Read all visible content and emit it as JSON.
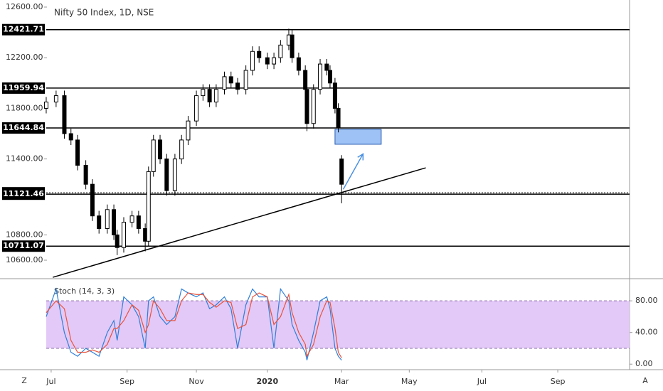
{
  "chart_data": [
    {
      "type": "candlestick",
      "title": "Nifty 50 Index, 1D, NSE",
      "x": [
        -3,
        3,
        8,
        12,
        16,
        21,
        25,
        29,
        34,
        38,
        40,
        44,
        49,
        53,
        57,
        59,
        62,
        66,
        70,
        75,
        79,
        83,
        88,
        92,
        96,
        100,
        105,
        109,
        113,
        118,
        122,
        126,
        131,
        135,
        139,
        144,
        146,
        150,
        154,
        155,
        159,
        163,
        167,
        169,
        172,
        174,
        176
      ],
      "open": [
        11800,
        11850,
        11900,
        11600,
        11550,
        11350,
        11200,
        10950,
        10850,
        11000,
        10800,
        10700,
        10900,
        10950,
        10850,
        10750,
        11300,
        11550,
        11400,
        11150,
        11400,
        11550,
        11700,
        11900,
        11950,
        11850,
        11950,
        12050,
        12000,
        11950,
        12100,
        12250,
        12200,
        12150,
        12200,
        12300,
        12380,
        12200,
        12100,
        11950,
        11680,
        11950,
        12150,
        12100,
        12000,
        11800,
        11400
      ],
      "high": [
        11890,
        11940,
        11940,
        11640,
        11590,
        11390,
        11240,
        10990,
        11040,
        11040,
        10840,
        10940,
        10990,
        10990,
        10890,
        11340,
        11590,
        11590,
        11440,
        11440,
        11590,
        11740,
        11940,
        11990,
        11990,
        11990,
        12090,
        12090,
        12040,
        12140,
        12290,
        12290,
        12240,
        12240,
        12340,
        12430,
        12420,
        12240,
        12140,
        11990,
        11990,
        12190,
        12190,
        12140,
        12040,
        11840,
        11430
      ],
      "low": [
        11760,
        11810,
        11560,
        11510,
        11310,
        11160,
        10910,
        10810,
        10810,
        10760,
        10640,
        10660,
        10860,
        10810,
        10670,
        10710,
        11260,
        11360,
        11110,
        11110,
        11360,
        11510,
        11660,
        11860,
        11810,
        11810,
        11910,
        11960,
        11910,
        11910,
        12060,
        12160,
        12110,
        12110,
        12160,
        12260,
        12160,
        12060,
        11910,
        11620,
        11640,
        11910,
        12060,
        11960,
        11760,
        11610,
        11050
      ],
      "close": [
        11850,
        11900,
        11600,
        11550,
        11350,
        11200,
        10950,
        10850,
        11000,
        10800,
        10700,
        10900,
        10950,
        10850,
        10750,
        11300,
        11550,
        11400,
        11150,
        11400,
        11550,
        11700,
        11900,
        11950,
        11850,
        11950,
        12050,
        12000,
        11950,
        12100,
        12250,
        12200,
        12150,
        12200,
        12300,
        12380,
        12200,
        12100,
        11950,
        11680,
        11950,
        12150,
        12100,
        12000,
        11800,
        11650,
        11200
      ],
      "up_color": "#ffffff",
      "down_color": "#000000",
      "xlim": [
        -31,
        350.5
      ],
      "ylim": [
        10454,
        12656
      ],
      "yticks": [
        {
          "value": 12600,
          "label": "12600.00"
        },
        {
          "value": 12200,
          "label": "12200.00"
        },
        {
          "value": 11800,
          "label": "11800.00"
        },
        {
          "value": 11400,
          "label": "11400.00"
        },
        {
          "value": 10800,
          "label": "10800.00"
        },
        {
          "value": 10600,
          "label": "10600.00"
        }
      ],
      "levels": [
        12421.71,
        11959.94,
        11644.84,
        11132.75,
        11121.46,
        10711.07
      ],
      "trendline": {
        "x": [
          1,
          227
        ],
        "y": [
          10465,
          11330
        ]
      },
      "zone": {
        "x": [
          172,
          200
        ],
        "y": [
          11516,
          11634
        ],
        "color": "#9ec2f5"
      },
      "arrow": {
        "x": [
          177,
          189
        ],
        "y": [
          11160,
          11440
        ],
        "color": "#4a90e2"
      }
    },
    {
      "type": "line",
      "title": "Stoch (14, 3, 3)",
      "x": [
        -3,
        3,
        8,
        12,
        16,
        21,
        25,
        29,
        34,
        38,
        40,
        44,
        49,
        53,
        57,
        59,
        62,
        66,
        70,
        75,
        79,
        83,
        88,
        92,
        96,
        100,
        105,
        109,
        113,
        118,
        122,
        126,
        131,
        135,
        139,
        144,
        146,
        150,
        154,
        155,
        159,
        163,
        167,
        169,
        172,
        174,
        176
      ],
      "series": [
        {
          "color": "#2f7fd8",
          "values": [
            60,
            95,
            40,
            15,
            10,
            20,
            15,
            10,
            40,
            55,
            30,
            85,
            75,
            60,
            20,
            80,
            85,
            60,
            50,
            60,
            95,
            90,
            85,
            90,
            70,
            75,
            85,
            70,
            20,
            75,
            95,
            85,
            85,
            20,
            95,
            80,
            50,
            30,
            15,
            5,
            40,
            80,
            85,
            70,
            20,
            10,
            5
          ]
        },
        {
          "color": "#e8533c",
          "values": [
            65,
            80,
            70,
            30,
            15,
            15,
            18,
            15,
            25,
            45,
            45,
            55,
            75,
            68,
            40,
            50,
            80,
            70,
            55,
            55,
            80,
            90,
            88,
            88,
            78,
            72,
            80,
            78,
            45,
            50,
            85,
            90,
            85,
            50,
            60,
            88,
            65,
            40,
            25,
            10,
            25,
            60,
            80,
            78,
            45,
            15,
            8
          ]
        }
      ],
      "band": [
        20,
        80
      ],
      "band_color": "#e3c9f7",
      "xlim": [
        -31,
        350.5
      ],
      "ylim": [
        -7,
        108
      ],
      "yticks": [
        {
          "value": 80,
          "label": "80.00"
        },
        {
          "value": 40,
          "label": "40.00"
        },
        {
          "value": 0,
          "label": "0.00"
        }
      ],
      "xticks": [
        {
          "value": 0,
          "label": "Jul"
        },
        {
          "value": 46,
          "label": "Sep"
        },
        {
          "value": 88,
          "label": "Nov"
        },
        {
          "value": 131,
          "label": "2020"
        },
        {
          "value": 176,
          "label": "Mar"
        },
        {
          "value": 217,
          "label": "May"
        },
        {
          "value": 261,
          "label": "Jul"
        },
        {
          "value": 307,
          "label": "Sep"
        }
      ]
    }
  ],
  "ui": {
    "left_button": "Z",
    "right_button": "A"
  }
}
